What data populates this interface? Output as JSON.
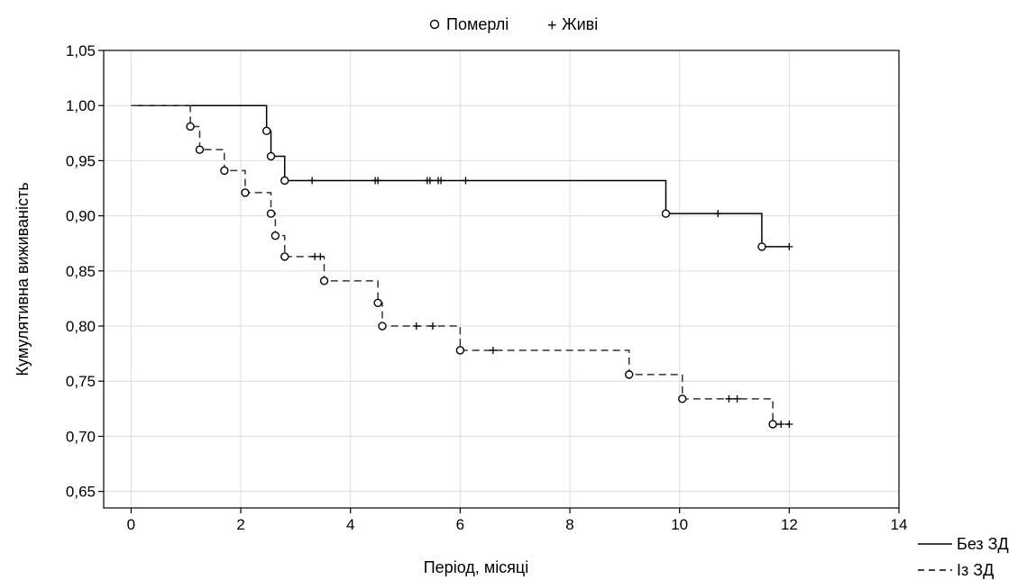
{
  "chart_data": {
    "type": "line",
    "xlabel": "Період, місяці",
    "ylabel": "Кумулятивна виживаність",
    "xlim": [
      -0.5,
      14
    ],
    "ylim": [
      0.635,
      1.05
    ],
    "x_ticks": [
      0,
      2,
      4,
      6,
      8,
      10,
      12,
      14
    ],
    "y_ticks": [
      0.65,
      0.7,
      0.75,
      0.8,
      0.85,
      0.9,
      0.95,
      1.0,
      1.05
    ],
    "x_tick_labels": [
      "0",
      "2",
      "4",
      "6",
      "8",
      "10",
      "12",
      "14"
    ],
    "y_tick_labels": [
      "0,65",
      "0,70",
      "0,75",
      "0,80",
      "0,85",
      "0,90",
      "0,95",
      "1,00",
      "1,05"
    ],
    "grid": true,
    "marker_legend": {
      "dead_symbol": "○",
      "dead_label": "Померлі",
      "alive_symbol": "+",
      "alive_label": "Живі"
    },
    "series": [
      {
        "name": "Без ЗД",
        "line_style": "solid",
        "steps": [
          [
            0,
            1.0
          ],
          [
            2.47,
            0.977
          ],
          [
            2.55,
            0.954
          ],
          [
            2.8,
            0.932
          ],
          [
            9.75,
            0.902
          ],
          [
            11.5,
            0.872
          ],
          [
            12.0,
            0.872
          ]
        ],
        "deaths": [
          [
            2.47,
            0.977
          ],
          [
            2.55,
            0.954
          ],
          [
            2.8,
            0.932
          ],
          [
            9.75,
            0.902
          ],
          [
            11.5,
            0.872
          ]
        ],
        "censored": [
          [
            3.3,
            0.932
          ],
          [
            4.45,
            0.932
          ],
          [
            4.5,
            0.932
          ],
          [
            5.4,
            0.932
          ],
          [
            5.45,
            0.932
          ],
          [
            5.6,
            0.932
          ],
          [
            5.65,
            0.932
          ],
          [
            6.1,
            0.932
          ],
          [
            10.7,
            0.902
          ],
          [
            12.0,
            0.872
          ]
        ]
      },
      {
        "name": "Із ЗД",
        "line_style": "dashed",
        "steps": [
          [
            0,
            1.0
          ],
          [
            1.08,
            0.981
          ],
          [
            1.25,
            0.96
          ],
          [
            1.7,
            0.941
          ],
          [
            2.08,
            0.921
          ],
          [
            2.55,
            0.902
          ],
          [
            2.63,
            0.882
          ],
          [
            2.8,
            0.863
          ],
          [
            3.52,
            0.841
          ],
          [
            4.5,
            0.821
          ],
          [
            4.58,
            0.8
          ],
          [
            6.0,
            0.778
          ],
          [
            9.08,
            0.756
          ],
          [
            10.05,
            0.734
          ],
          [
            11.7,
            0.711
          ],
          [
            12.0,
            0.711
          ]
        ],
        "deaths": [
          [
            1.08,
            0.981
          ],
          [
            1.25,
            0.96
          ],
          [
            1.7,
            0.941
          ],
          [
            2.08,
            0.921
          ],
          [
            2.55,
            0.902
          ],
          [
            2.63,
            0.882
          ],
          [
            2.8,
            0.863
          ],
          [
            3.52,
            0.841
          ],
          [
            4.5,
            0.821
          ],
          [
            4.58,
            0.8
          ],
          [
            6.0,
            0.778
          ],
          [
            9.08,
            0.756
          ],
          [
            10.05,
            0.734
          ],
          [
            11.7,
            0.711
          ]
        ],
        "censored": [
          [
            3.35,
            0.863
          ],
          [
            3.45,
            0.863
          ],
          [
            5.2,
            0.8
          ],
          [
            5.5,
            0.8
          ],
          [
            6.6,
            0.778
          ],
          [
            10.9,
            0.734
          ],
          [
            11.05,
            0.734
          ],
          [
            11.85,
            0.711
          ],
          [
            12.0,
            0.711
          ]
        ]
      }
    ]
  }
}
